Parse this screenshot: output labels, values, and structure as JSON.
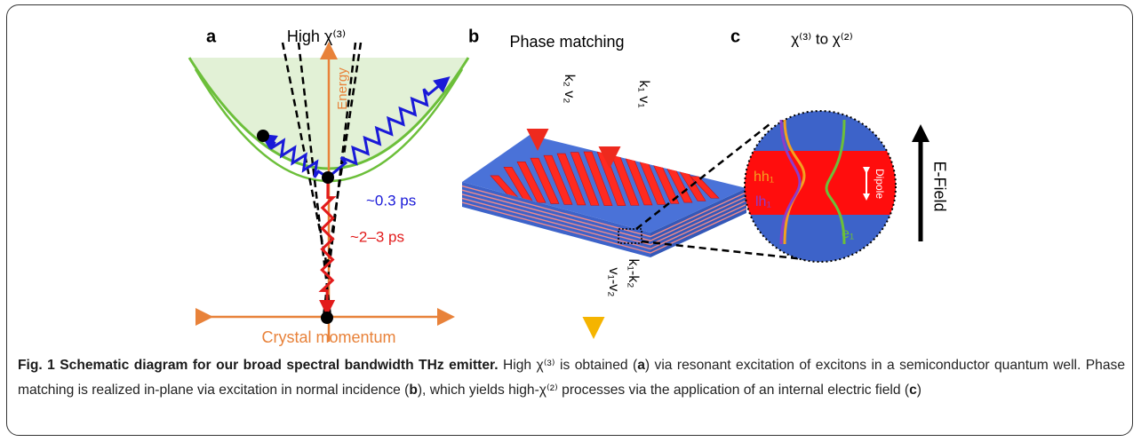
{
  "panel_a": {
    "letter": "a",
    "title": "High χ⁽³⁾",
    "axis_y": "Energy",
    "fast": "~0.3 ps",
    "slow": "~2–3 ps",
    "axis_x": "Crystal momentum"
  },
  "panel_b": {
    "letter": "b",
    "title": "Phase matching",
    "beam_2": "k₂ v₂",
    "beam_1": "k₁ v₁",
    "out_k": "k₁-k₂",
    "out_v": "v₁-v₂"
  },
  "panel_c": {
    "letter": "c",
    "title": "χ⁽³⁾ to χ⁽²⁾",
    "hh": "hh₁",
    "lh": "lh₁",
    "e": "e₁",
    "dipole": "Dipole",
    "field": "E-Field"
  },
  "caption": {
    "title": "Fig. 1 Schematic diagram for our broad spectral bandwidth THz emitter.",
    "parts": [
      "High χ⁽³⁾ is obtained (",
      "a",
      ") via resonant excitation of excitons in a semiconductor quantum well. Phase matching is realized in-plane via excitation in normal incidence (",
      "b",
      "), which yields high-χ⁽²⁾ processes via the application of an internal electric field (",
      "c",
      ")"
    ]
  }
}
